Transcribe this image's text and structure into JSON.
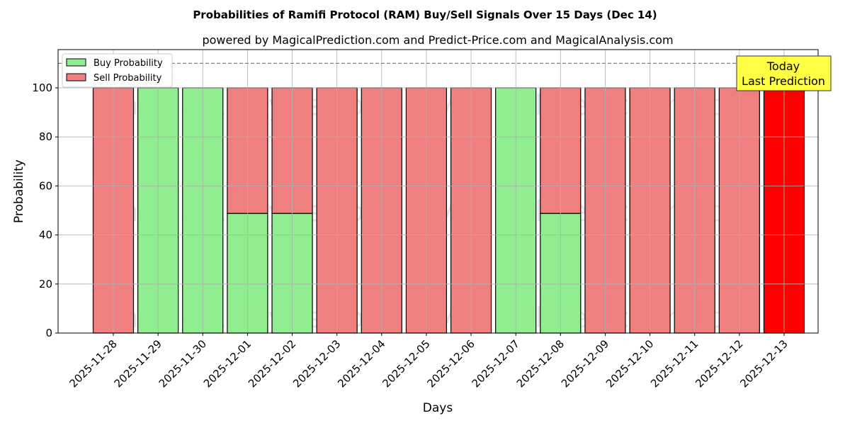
{
  "chart_data": {
    "type": "bar",
    "title": "Probabilities of Ramifi Protocol (RAM) Buy/Sell Signals Over 15 Days (Dec 14)",
    "subtitle": "powered by MagicalPrediction.com and Predict-Price.com and MagicalAnalysis.com",
    "xlabel": "Days",
    "ylabel": "Probability",
    "ylim": [
      0,
      115.6
    ],
    "yticks": [
      0,
      20,
      40,
      60,
      80,
      100
    ],
    "grid": true,
    "legend_position": "top-left",
    "categories": [
      "2025-11-28",
      "2025-11-29",
      "2025-11-30",
      "2025-12-01",
      "2025-12-02",
      "2025-12-03",
      "2025-12-04",
      "2025-12-05",
      "2025-12-06",
      "2025-12-07",
      "2025-12-08",
      "2025-12-09",
      "2025-12-10",
      "2025-12-11",
      "2025-12-12",
      "2025-12-13"
    ],
    "series": [
      {
        "name": "Buy Probability",
        "color": "#90ee90",
        "values": [
          0,
          100,
          100,
          48.8,
          48.8,
          0,
          0,
          0,
          0,
          100,
          48.8,
          0,
          0,
          0,
          0,
          0
        ]
      },
      {
        "name": "Sell Probability",
        "color": "#f08080",
        "values": [
          100,
          0,
          0,
          51.2,
          51.2,
          100,
          100,
          100,
          100,
          0,
          51.2,
          100,
          100,
          100,
          100,
          100
        ]
      }
    ],
    "highlight": {
      "index": 15,
      "color": "#ff0000"
    },
    "reference_line": 110,
    "annotation": [
      "Today",
      "Last Prediction"
    ],
    "watermarks": [
      "MagicalAnalysis.com",
      "MagicalPrediction.com"
    ]
  }
}
